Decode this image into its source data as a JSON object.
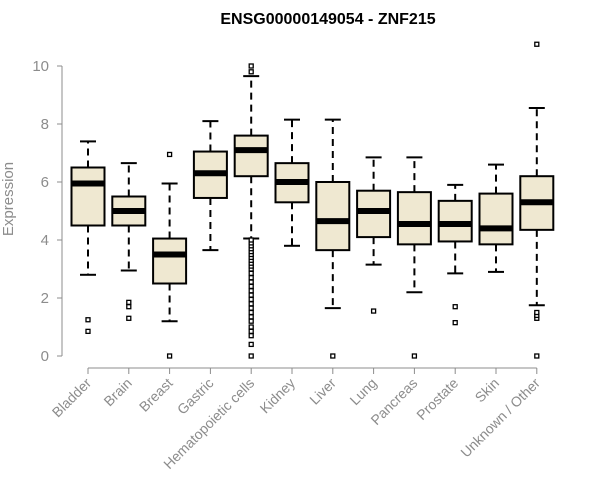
{
  "chart_data": {
    "type": "box",
    "title": "ENSG00000149054 - ZNF215",
    "ylabel": "Expression",
    "ylim": [
      0,
      10
    ],
    "yticks": [
      0,
      2,
      4,
      6,
      8,
      10
    ],
    "grid": false,
    "box_fill": "#efe8d1",
    "categories": [
      "Bladder",
      "Brain",
      "Breast",
      "Gastric",
      "Hematopoietic cells",
      "Kidney",
      "Liver",
      "Lung",
      "Pancreas",
      "Prostate",
      "Skin",
      "Unknown / Other"
    ],
    "boxes": [
      {
        "q1": 4.5,
        "median": 5.95,
        "q3": 6.5,
        "whisker_low": 2.8,
        "whisker_high": 7.4,
        "outliers": [
          0.85,
          1.25
        ]
      },
      {
        "q1": 4.5,
        "median": 5.0,
        "q3": 5.5,
        "whisker_low": 2.95,
        "whisker_high": 6.65,
        "outliers": [
          1.3,
          1.7,
          1.85
        ]
      },
      {
        "q1": 2.5,
        "median": 3.5,
        "q3": 4.05,
        "whisker_low": 1.2,
        "whisker_high": 5.95,
        "outliers": [
          0.0,
          6.95
        ]
      },
      {
        "q1": 5.45,
        "median": 6.3,
        "q3": 7.05,
        "whisker_low": 3.65,
        "whisker_high": 8.1,
        "outliers": []
      },
      {
        "q1": 6.2,
        "median": 7.1,
        "q3": 7.6,
        "whisker_low": 4.05,
        "whisker_high": 9.65,
        "outliers": [
          10.0,
          9.8,
          0.0,
          0.4,
          0.7,
          0.85,
          1.0,
          1.2,
          1.35,
          1.5,
          1.65,
          1.8,
          1.95,
          2.1,
          2.25,
          2.4,
          2.55,
          2.7,
          2.85,
          3.0,
          3.1,
          3.2,
          3.3,
          3.4,
          3.5,
          3.6,
          3.7,
          3.8,
          3.9,
          4.0
        ]
      },
      {
        "q1": 5.3,
        "median": 6.0,
        "q3": 6.65,
        "whisker_low": 3.8,
        "whisker_high": 8.15,
        "outliers": []
      },
      {
        "q1": 3.65,
        "median": 4.65,
        "q3": 6.0,
        "whisker_low": 1.65,
        "whisker_high": 8.15,
        "outliers": [
          0.0
        ]
      },
      {
        "q1": 4.1,
        "median": 5.0,
        "q3": 5.7,
        "whisker_low": 3.15,
        "whisker_high": 6.85,
        "outliers": [
          1.55
        ]
      },
      {
        "q1": 3.85,
        "median": 4.55,
        "q3": 5.65,
        "whisker_low": 2.2,
        "whisker_high": 6.85,
        "outliers": [
          0.0
        ]
      },
      {
        "q1": 3.95,
        "median": 4.55,
        "q3": 5.35,
        "whisker_low": 2.85,
        "whisker_high": 5.9,
        "outliers": [
          1.15,
          1.7
        ]
      },
      {
        "q1": 3.85,
        "median": 4.4,
        "q3": 5.6,
        "whisker_low": 2.9,
        "whisker_high": 6.6,
        "outliers": []
      },
      {
        "q1": 4.35,
        "median": 5.3,
        "q3": 6.2,
        "whisker_low": 1.75,
        "whisker_high": 8.55,
        "outliers": [
          10.75,
          1.3,
          1.4,
          1.5,
          0.0
        ]
      }
    ]
  }
}
